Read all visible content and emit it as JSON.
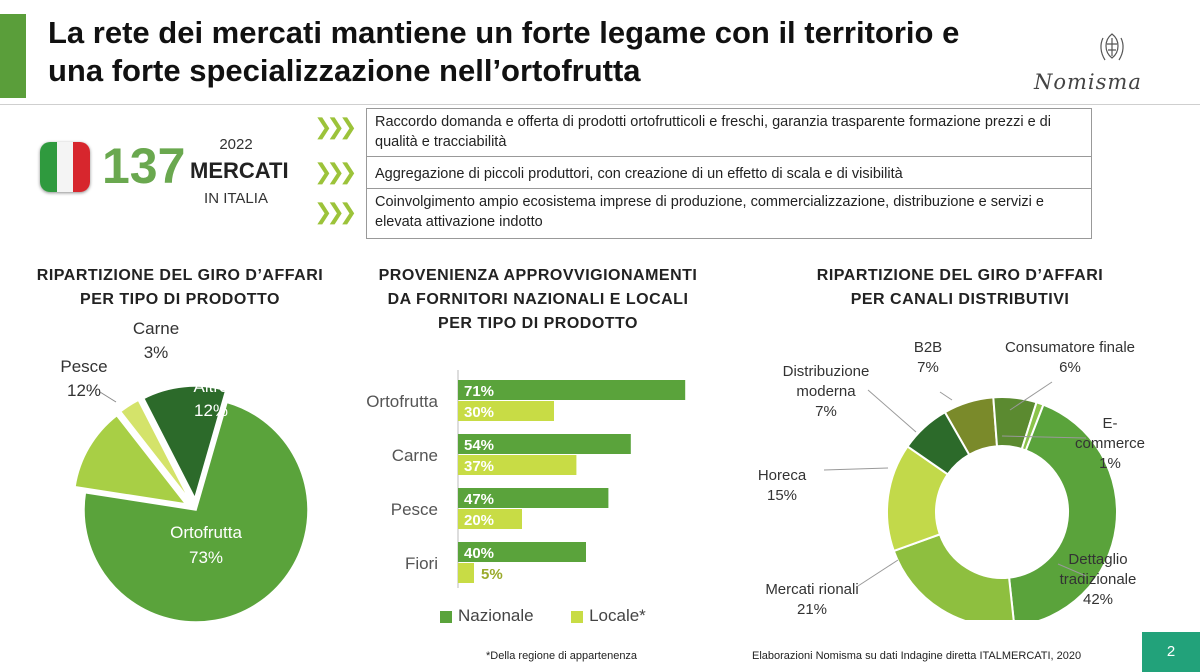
{
  "header": {
    "title_line1": "La rete dei mercati mantiene un forte legame con il territorio e",
    "title_line2": "una forte specializzazione nell’ortofrutta",
    "logo_text": "Nomisma",
    "accent_color": "#5a9e3a"
  },
  "headline": {
    "number": "137",
    "year": "2022",
    "label": "MERCATI",
    "sublabel": "IN ITALIA"
  },
  "bullets": [
    "Raccordo domanda e offerta di prodotti ortofrutticoli e freschi, garanzia trasparente formazione prezzi e di qualità e tracciabilità",
    "Aggregazione di piccoli produttori, con creazione di un effetto di scala e di visibilità",
    "Coinvolgimento ampio ecosistema imprese di produzione, commercializzazione, distribuzione e servizi e elevata attivazione indotto"
  ],
  "chart_data": [
    {
      "type": "pie",
      "title_line1": "RIPARTIZIONE DEL GIRO D’AFFARI",
      "title_line2": "PER TIPO DI PRODOTTO",
      "slices": [
        {
          "label": "Ortofrutta",
          "value": 73,
          "value_label": "73%",
          "color": "#5aa33b"
        },
        {
          "label": "Pesce",
          "value": 12,
          "value_label": "12%",
          "color": "#a8cf45"
        },
        {
          "label": "Carne",
          "value": 3,
          "value_label": "3%",
          "color": "#d4e36a"
        },
        {
          "label": "Altro",
          "value": 12,
          "value_label": "12%",
          "color": "#2c6a2a"
        }
      ]
    },
    {
      "type": "bar",
      "orientation": "horizontal",
      "title_line1": "PROVENIENZA APPROVVIGIONAMENTI",
      "title_line2": "DA FORNITORI NAZIONALI E LOCALI",
      "title_line3": "PER TIPO DI PRODOTTO",
      "categories": [
        "Ortofrutta",
        "Carne",
        "Pesce",
        "Fiori"
      ],
      "series": [
        {
          "name": "Nazionale",
          "values": [
            71,
            54,
            47,
            40
          ],
          "labels": [
            "71%",
            "54%",
            "47%",
            "40%"
          ],
          "color": "#5aa33b"
        },
        {
          "name": "Locale*",
          "values": [
            30,
            37,
            20,
            5
          ],
          "labels": [
            "30%",
            "37%",
            "20%",
            "5%"
          ],
          "color": "#c8dc45"
        }
      ],
      "xlim": [
        0,
        100
      ],
      "legend_position": "bottom"
    },
    {
      "type": "pie",
      "variant": "donut",
      "title_line1": "RIPARTIZIONE DEL GIRO D’AFFARI",
      "title_line2": "PER CANALI DISTRIBUTIVI",
      "slices": [
        {
          "label_lines": [
            "B2B"
          ],
          "value": 7,
          "value_label": "7%",
          "color": "#7a8a2a"
        },
        {
          "label_lines": [
            "Consumatore finale"
          ],
          "value": 6,
          "value_label": "6%",
          "color": "#5b8a30"
        },
        {
          "label_lines": [
            "E-",
            "commerce"
          ],
          "value": 1,
          "value_label": "1%",
          "color": "#8bc34a"
        },
        {
          "label_lines": [
            "Dettaglio",
            "tradizionale"
          ],
          "value": 42,
          "value_label": "42%",
          "color": "#5aa33b"
        },
        {
          "label_lines": [
            "Mercati rionali"
          ],
          "value": 21,
          "value_label": "21%",
          "color": "#8ebf3f"
        },
        {
          "label_lines": [
            "Horeca"
          ],
          "value": 15,
          "value_label": "15%",
          "color": "#c2d94a"
        },
        {
          "label_lines": [
            "Distribuzione",
            "moderna"
          ],
          "value": 7,
          "value_label": "7%",
          "color": "#2c6a2a"
        }
      ]
    }
  ],
  "footer": {
    "footnote": "*Della regione di appartenenza",
    "source": "Elaborazioni Nomisma su dati Indagine diretta ITALMERCATI, 2020",
    "page_number": "2"
  }
}
